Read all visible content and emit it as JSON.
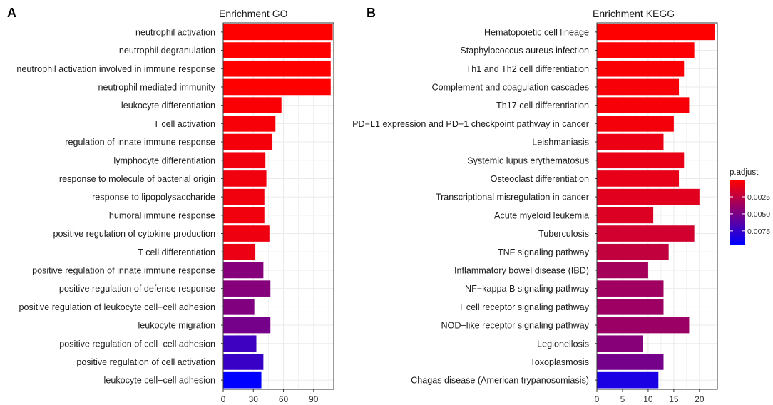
{
  "chart_data": [
    {
      "panel": "A",
      "type": "bar",
      "orientation": "horizontal",
      "title": "Enrichment GO",
      "xlim": [
        0,
        110
      ],
      "xticks": [
        0,
        30,
        60,
        90
      ],
      "grid": true,
      "categories": [
        "neutrophil activation",
        "neutrophil degranulation",
        "neutrophil activation involved in immune response",
        "neutrophil mediated immunity",
        "leukocyte differentiation",
        "T cell activation",
        "regulation of innate immune response",
        "lymphocyte differentiation",
        "response to molecule of bacterial origin",
        "response to lipopolysaccharide",
        "humoral immune response",
        "positive regulation of cytokine production",
        "T cell differentiation",
        "positive regulation of innate immune response",
        "positive regulation of defense response",
        "positive regulation of leukocyte cell−cell adhesion",
        "leukocyte migration",
        "positive regulation of cell−cell adhesion",
        "positive regulation of cell activation",
        "leukocyte cell−cell adhesion"
      ],
      "values": [
        109,
        107,
        107,
        107,
        58,
        52,
        49,
        42,
        43,
        41,
        41,
        46,
        32,
        40,
        47,
        31,
        47,
        33,
        40,
        38
      ],
      "p_adjust": [
        0.0001,
        0.0001,
        0.0001,
        0.0001,
        0.0003,
        0.0004,
        0.0005,
        0.0006,
        0.0006,
        0.0006,
        0.0006,
        0.0007,
        0.0008,
        0.0046,
        0.0046,
        0.0048,
        0.0052,
        0.0072,
        0.0074,
        0.0095
      ]
    },
    {
      "panel": "B",
      "type": "bar",
      "orientation": "horizontal",
      "title": "Enrichment KEGG",
      "xlim": [
        0,
        23.5
      ],
      "xticks": [
        0,
        5,
        10,
        15,
        20
      ],
      "grid": true,
      "categories": [
        "Hematopoietic cell lineage",
        "Staphylococcus aureus infection",
        "Th1 and Th2 cell differentiation",
        "Complement and coagulation cascades",
        "Th17 cell differentiation",
        "PD−L1 expression and PD−1 checkpoint pathway in cancer",
        "Leishmaniasis",
        "Systemic lupus erythematosus",
        "Osteoclast differentiation",
        "Transcriptional misregulation in cancer",
        "Acute myeloid leukemia",
        "Tuberculosis",
        "TNF signaling pathway",
        "Inflammatory bowel disease (IBD)",
        "NF−kappa B signaling pathway",
        "T cell receptor signaling pathway",
        "NOD−like receptor signaling pathway",
        "Legionellosis",
        "Toxoplasmosis",
        "Chagas disease (American trypanosomiasis)"
      ],
      "values": [
        23,
        19,
        17,
        16,
        18,
        15,
        13,
        17,
        16,
        20,
        11,
        19,
        14,
        10,
        13,
        13,
        18,
        9,
        13,
        12
      ],
      "p_adjust": [
        0.0001,
        0.0002,
        0.0003,
        0.0004,
        0.0004,
        0.0005,
        0.0008,
        0.0009,
        0.001,
        0.0012,
        0.0014,
        0.0018,
        0.0024,
        0.0034,
        0.0036,
        0.0037,
        0.0038,
        0.0045,
        0.0052,
        0.0085
      ]
    }
  ],
  "figure": {
    "panel_labels": [
      "A",
      "B"
    ]
  },
  "legend": {
    "title": "p.adjust",
    "ticks": [
      "0.0025",
      "0.0050",
      "0.0075"
    ],
    "tick_values": [
      0.0025,
      0.005,
      0.0075
    ],
    "range": [
      0.0001,
      0.0095
    ],
    "color_low": "#ff0000",
    "color_high": "#0000ff"
  },
  "style": {
    "panel_border": "#333333",
    "grid_color": "#ebebeb"
  }
}
